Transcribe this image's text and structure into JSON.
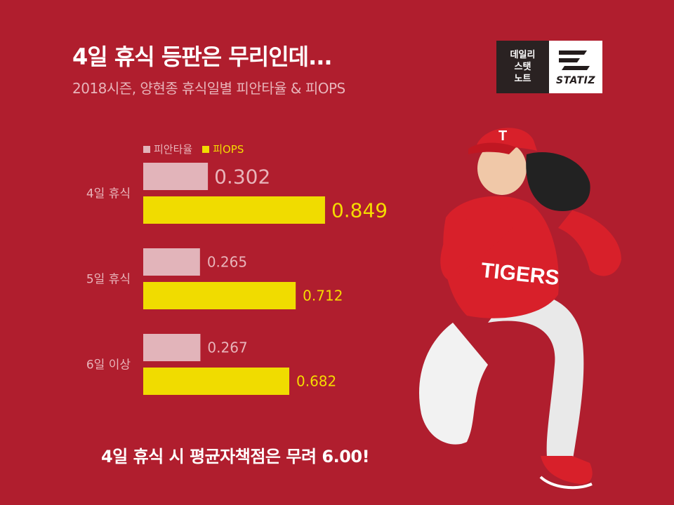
{
  "title": "4일 휴식 등판은 무리인데...",
  "subtitle": "2018시즌, 양현종 휴식일별 피안타율 & 피OPS",
  "logo": {
    "line1": "데일리",
    "line2": "스탯",
    "line3": "노트",
    "brand": "STATIZ"
  },
  "footer": "4일 휴식 시 평균자책점은 무려 6.00!",
  "colors": {
    "background": "#b01e2e",
    "avg_bar": "#e2b4ba",
    "ops_bar": "#f0dc00",
    "avg_label": "#e8b4ba",
    "ops_label": "#f5dc00"
  },
  "chart_data": {
    "type": "bar",
    "orientation": "horizontal",
    "categories": [
      "4일 휴식",
      "5일 휴식",
      "6일 이상"
    ],
    "series": [
      {
        "name": "피안타율",
        "values": [
          0.302,
          0.265,
          0.267
        ],
        "labels": [
          "0.302",
          "0.265",
          "0.267"
        ]
      },
      {
        "name": "피OPS",
        "values": [
          0.849,
          0.712,
          0.682
        ],
        "labels": [
          "0.849",
          "0.712",
          "0.682"
        ]
      }
    ],
    "legend_position": "top-left",
    "grid": false
  }
}
